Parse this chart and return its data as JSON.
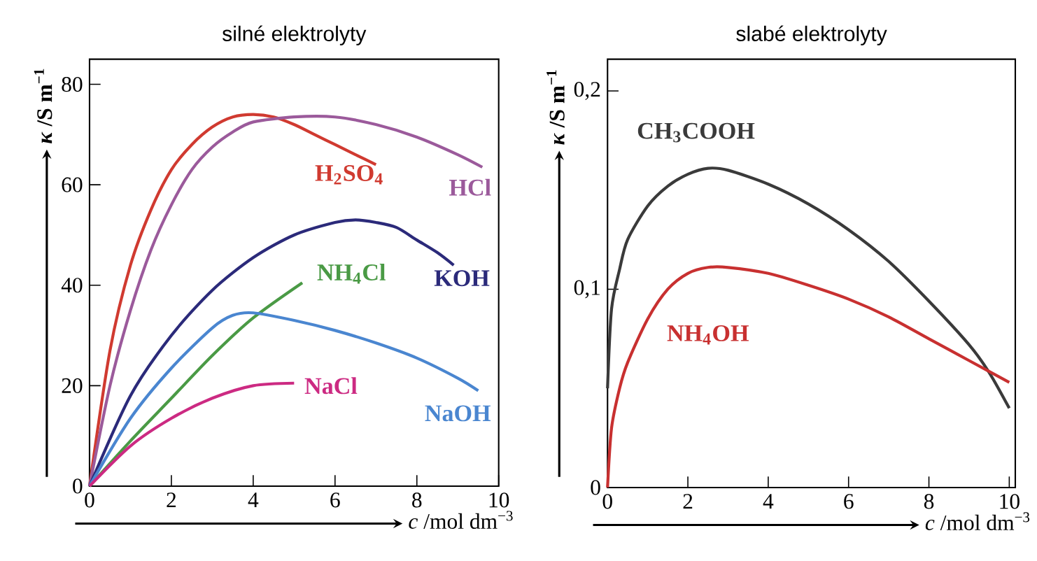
{
  "chart_data": [
    {
      "type": "line",
      "title": "silné elektrolyty",
      "xlabel": "*c* /mol dm$^{−3}$",
      "ylabel": "*κ* /S m$^{−1}$",
      "xlim": [
        0,
        10
      ],
      "ylim": [
        0,
        85
      ],
      "xticks": [
        0,
        2,
        4,
        6,
        8,
        10
      ],
      "yticks": [
        0,
        20,
        40,
        60,
        80
      ],
      "series": [
        {
          "name": "H$_{2}$SO$_{4}$",
          "color": "#d03a30",
          "x": [
            0,
            0.5,
            1,
            1.5,
            2,
            2.5,
            3,
            3.5,
            4,
            4.5,
            5,
            5.5,
            6,
            6.5,
            7
          ],
          "values": [
            0,
            27,
            44,
            55,
            63,
            68,
            71.5,
            73.5,
            74,
            73.5,
            72,
            70,
            68,
            66,
            64
          ]
        },
        {
          "name": "HCl",
          "color": "#9b5a9b",
          "x": [
            0,
            0.5,
            1,
            1.5,
            2,
            2.5,
            3,
            3.5,
            4,
            5,
            6,
            7,
            8,
            9,
            9.6
          ],
          "values": [
            0,
            20,
            35,
            47,
            56,
            63,
            67.5,
            70.5,
            72.5,
            73.5,
            73.5,
            72,
            69.5,
            66,
            63.5
          ]
        },
        {
          "name": "KOH",
          "color": "#2b2a7a",
          "x": [
            0,
            1,
            2,
            3,
            4,
            5,
            6,
            6.5,
            7,
            7.5,
            8,
            8.5,
            8.9
          ],
          "values": [
            0,
            18,
            30,
            39,
            45.5,
            50,
            52.5,
            53,
            52.5,
            51.5,
            49,
            46.5,
            44
          ]
        },
        {
          "name": "NH$_{4}$Cl",
          "color": "#4a9a45",
          "x": [
            0,
            1,
            2,
            3,
            4,
            5.2
          ],
          "values": [
            0,
            9,
            17.5,
            26,
            33.5,
            40.5
          ]
        },
        {
          "name": "NaOH",
          "color": "#4a86d0",
          "x": [
            0,
            1,
            2,
            3,
            3.5,
            4,
            5,
            6,
            7,
            8,
            9,
            9.5
          ],
          "values": [
            0,
            13.5,
            23.5,
            31.5,
            34,
            34.5,
            33,
            31,
            28.5,
            25.5,
            21.5,
            19
          ]
        },
        {
          "name": "NaCl",
          "color": "#cc2a82",
          "x": [
            0,
            1,
            2,
            3,
            4,
            5
          ],
          "values": [
            0,
            8,
            13.5,
            17.5,
            20,
            20.5
          ]
        }
      ]
    },
    {
      "type": "line",
      "title": "slabé elektrolyty",
      "xlabel": "*c* /mol dm$^{−3}$",
      "ylabel": "*κ* /S m$^{−1}$",
      "xlim": [
        0,
        10.15
      ],
      "ylim": [
        0,
        0.216
      ],
      "xticks": [
        0,
        2,
        4,
        6,
        8,
        10
      ],
      "yticks": [
        0,
        {
          "value": 0.1,
          "label": "0,1"
        },
        {
          "value": 0.2,
          "label": "0,2"
        }
      ],
      "series": [
        {
          "name": "CH$_{3}$COOH",
          "color": "#3a3a3a",
          "x": [
            0,
            0.1,
            0.3,
            0.5,
            1,
            1.5,
            2,
            2.5,
            3,
            4,
            5,
            6,
            7,
            8,
            9,
            9.5,
            10
          ],
          "values": [
            0.05,
            0.09,
            0.11,
            0.125,
            0.142,
            0.152,
            0.158,
            0.161,
            0.16,
            0.153,
            0.143,
            0.13,
            0.114,
            0.094,
            0.072,
            0.058,
            0.04
          ]
        },
        {
          "name": "NH$_{4}$OH",
          "color": "#c83030",
          "x": [
            0,
            0.1,
            0.3,
            0.5,
            1,
            1.5,
            2,
            2.5,
            3,
            4,
            5,
            6,
            7,
            8,
            9,
            10
          ],
          "values": [
            0,
            0.03,
            0.05,
            0.063,
            0.085,
            0.1,
            0.108,
            0.111,
            0.111,
            0.108,
            0.102,
            0.095,
            0.086,
            0.075,
            0.064,
            0.053
          ]
        }
      ]
    }
  ]
}
